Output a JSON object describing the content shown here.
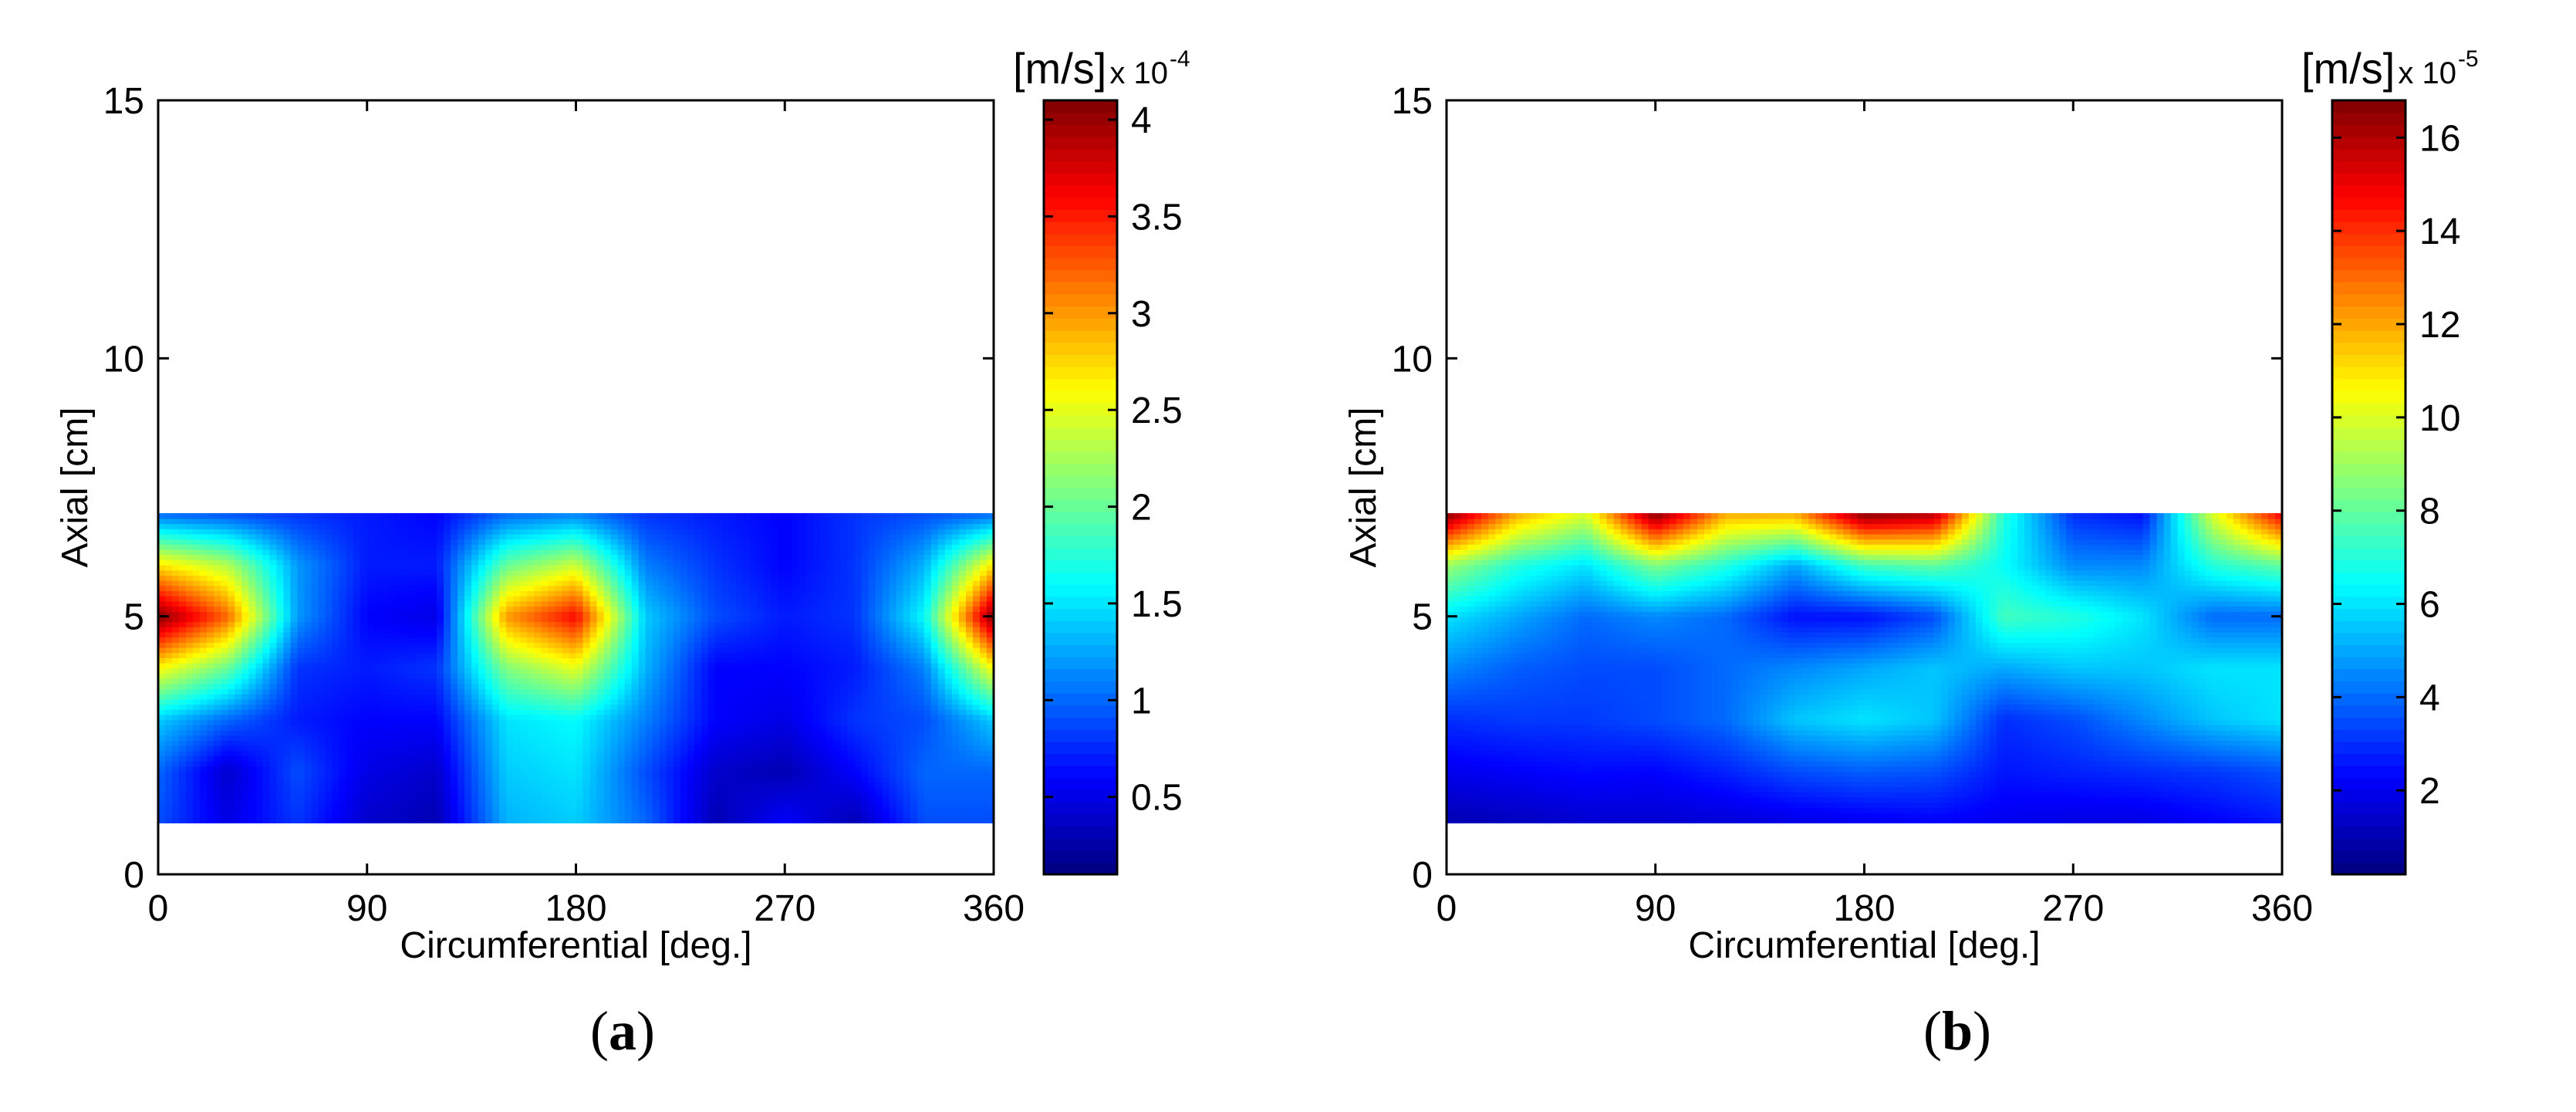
{
  "chart_data": [
    {
      "type": "heatmap",
      "panel_label": "a",
      "xlabel": "Circumferential [deg.]",
      "ylabel": "Axial [cm]",
      "xlim": [
        0,
        360
      ],
      "ylim": [
        0,
        15
      ],
      "xticks": [
        0,
        90,
        180,
        270,
        360
      ],
      "yticks": [
        0,
        5,
        10,
        15
      ],
      "data_extent": {
        "x": [
          0,
          360
        ],
        "y": [
          1,
          7
        ]
      },
      "colormap": "jet",
      "colorbar": {
        "unit": "[m/s]",
        "multiplier_base": "x 10",
        "multiplier_exponent": "-4",
        "range": [
          0.1,
          4.1
        ],
        "ticks": [
          0.5,
          1,
          1.5,
          2,
          2.5,
          3,
          3.5,
          4
        ],
        "tick_labels": [
          "0.5",
          "1",
          "1.5",
          "2",
          "2.5",
          "3",
          "3.5",
          "4"
        ]
      },
      "grid_x": [
        0,
        30,
        60,
        90,
        120,
        150,
        180,
        210,
        240,
        270,
        300,
        330,
        360
      ],
      "grid_y": [
        1,
        2,
        3,
        4,
        5,
        6,
        7
      ],
      "values": [
        [
          0.9,
          0.5,
          0.8,
          0.4,
          0.3,
          1.3,
          1.4,
          1.0,
          0.3,
          0.6,
          0.3,
          0.9,
          0.9
        ],
        [
          1.0,
          0.4,
          0.9,
          0.5,
          0.4,
          1.4,
          1.5,
          0.9,
          0.4,
          0.3,
          0.6,
          1.0,
          1.0
        ],
        [
          1.4,
          1.0,
          0.7,
          0.6,
          0.6,
          1.5,
          1.6,
          1.1,
          0.6,
          0.5,
          0.8,
          0.9,
          1.4
        ],
        [
          2.6,
          2.0,
          0.8,
          0.7,
          0.8,
          2.1,
          2.5,
          1.3,
          0.6,
          0.6,
          0.7,
          1.1,
          2.6
        ],
        [
          4.1,
          3.2,
          1.2,
          0.6,
          0.5,
          3.0,
          3.6,
          1.4,
          0.9,
          0.7,
          0.8,
          1.6,
          4.1
        ],
        [
          2.7,
          2.3,
          1.2,
          0.7,
          0.7,
          2.0,
          2.4,
          1.1,
          0.8,
          0.6,
          0.8,
          1.3,
          2.7
        ],
        [
          1.0,
          0.9,
          0.8,
          0.7,
          0.6,
          1.0,
          1.1,
          0.8,
          0.7,
          0.6,
          0.8,
          0.9,
          1.0
        ]
      ]
    },
    {
      "type": "heatmap",
      "panel_label": "b",
      "xlabel": "Circumferential [deg.]",
      "ylabel": "Axial [cm]",
      "xlim": [
        0,
        360
      ],
      "ylim": [
        0,
        15
      ],
      "xticks": [
        0,
        90,
        180,
        270,
        360
      ],
      "yticks": [
        0,
        5,
        10,
        15
      ],
      "data_extent": {
        "x": [
          0,
          360
        ],
        "y": [
          1,
          7
        ]
      },
      "colormap": "jet",
      "colorbar": {
        "unit": "[m/s]",
        "multiplier_base": "x 10",
        "multiplier_exponent": "-5",
        "range": [
          0.2,
          16.8
        ],
        "ticks": [
          2,
          4,
          6,
          8,
          10,
          12,
          14,
          16
        ],
        "tick_labels": [
          "2",
          "4",
          "6",
          "8",
          "10",
          "12",
          "14",
          "16"
        ]
      },
      "grid_x": [
        0,
        30,
        60,
        90,
        120,
        150,
        180,
        210,
        240,
        270,
        300,
        330,
        360
      ],
      "grid_y": [
        1,
        2,
        3,
        4,
        5,
        6,
        7
      ],
      "values": [
        [
          1.0,
          1.2,
          1.5,
          1.5,
          1.6,
          1.8,
          2.0,
          2.2,
          2.0,
          1.8,
          1.8,
          2.2,
          2.6
        ],
        [
          2.0,
          2.2,
          2.4,
          2.3,
          2.8,
          3.5,
          3.8,
          3.6,
          2.6,
          2.8,
          3.0,
          3.2,
          3.6
        ],
        [
          3.0,
          3.2,
          3.2,
          3.5,
          4.0,
          5.5,
          6.0,
          5.5,
          3.0,
          3.5,
          4.5,
          5.5,
          6.0
        ],
        [
          4.5,
          3.8,
          3.5,
          3.5,
          4.0,
          4.5,
          5.0,
          5.5,
          5.0,
          5.5,
          5.5,
          6.0,
          6.0
        ],
        [
          6.0,
          5.0,
          4.0,
          4.5,
          4.0,
          2.5,
          2.5,
          3.5,
          7.5,
          7.0,
          6.0,
          4.0,
          4.0
        ],
        [
          9.0,
          7.0,
          6.0,
          8.5,
          7.0,
          5.0,
          7.5,
          8.0,
          6.5,
          4.5,
          4.5,
          7.0,
          8.0
        ],
        [
          16.8,
          12.0,
          10.0,
          16.8,
          12.0,
          12.0,
          16.8,
          16.0,
          7.0,
          3.0,
          2.5,
          10.0,
          15.0
        ]
      ]
    }
  ]
}
